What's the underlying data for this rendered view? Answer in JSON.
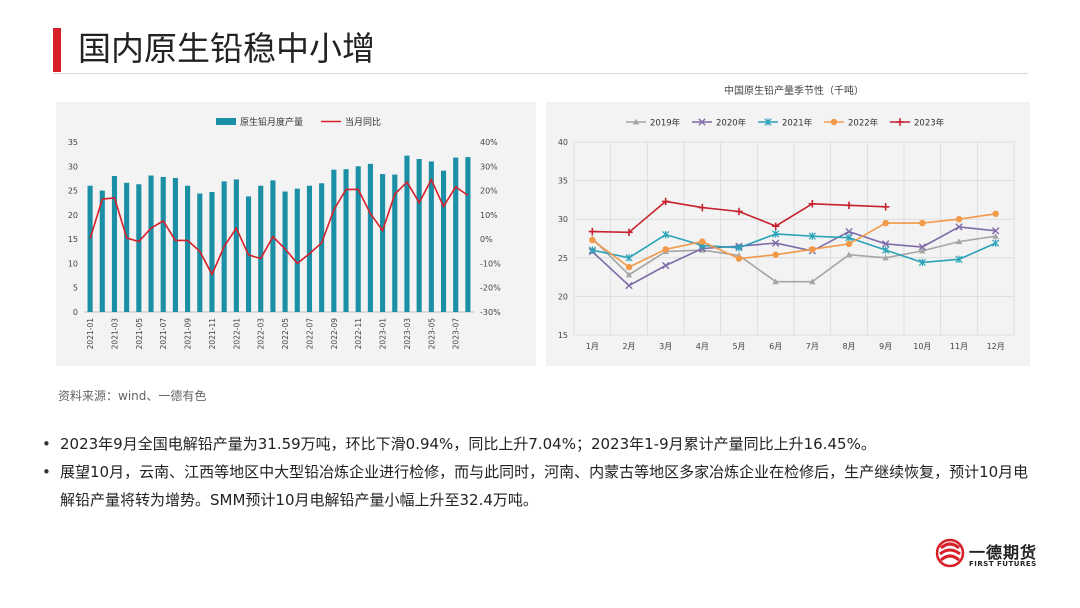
{
  "page": {
    "title": "国内原生铅稳中小增",
    "source": "资料来源：wind、一德有色",
    "bullets": [
      "2023年9月全国电解铅产量为31.59万吨，环比下滑0.94%，同比上升7.04%；2023年1-9月累计产量同比上升16.45%。",
      "展望10月，云南、江西等地区中大型铅冶炼企业进行检修，而与此同时，河南、内蒙古等地区多家冶炼企业在检修后，生产继续恢复，预计10月电解铅产量将转为增势。SMM预计10月电解铅产量小幅上升至32.4万吨。"
    ]
  },
  "logo": {
    "name": "一德期货",
    "sub": "FIRST FUTURES"
  },
  "colors": {
    "accent": "#d7202a",
    "bar": "#1b8fa6",
    "yoy": "#d7202a"
  },
  "chart_data": [
    {
      "type": "bar",
      "title": "",
      "categories": [
        "2021-01",
        "2021-02",
        "2021-03",
        "2021-04",
        "2021-05",
        "2021-06",
        "2021-07",
        "2021-08",
        "2021-09",
        "2021-10",
        "2021-11",
        "2021-12",
        "2022-01",
        "2022-02",
        "2022-03",
        "2022-04",
        "2022-05",
        "2022-06",
        "2022-07",
        "2022-08",
        "2022-09",
        "2022-10",
        "2022-11",
        "2022-12",
        "2023-01",
        "2023-02",
        "2023-03",
        "2023-04",
        "2023-05",
        "2023-06",
        "2023-07",
        "2023-08"
      ],
      "x_tick_labels": [
        "2021-01",
        "2021-03",
        "2021-05",
        "2021-07",
        "2021-09",
        "2021-11",
        "2022-01",
        "2022-03",
        "2022-05",
        "2022-07",
        "2022-09",
        "2022-11",
        "2023-01",
        "2023-03",
        "2023-05",
        "2023-07"
      ],
      "series": [
        {
          "name": "原生铅月度产量",
          "type": "bar",
          "axis": "left",
          "values": [
            26,
            25,
            28,
            26.6,
            26.3,
            28.1,
            27.8,
            27.6,
            26,
            24.4,
            24.7,
            26.9,
            27.3,
            23.8,
            26,
            27.1,
            24.8,
            25.4,
            26,
            26.5,
            29.3,
            29.4,
            30,
            30.5,
            28.4,
            28.3,
            32.2,
            31.5,
            31,
            29.1,
            31.8,
            31.9
          ]
        },
        {
          "name": "当月同比",
          "type": "line",
          "axis": "right",
          "values": [
            0.2,
            16.5,
            17,
            0.5,
            -1,
            4.5,
            7.5,
            -0.5,
            -0.5,
            -5,
            -14.5,
            -3,
            4.5,
            -6.5,
            -8,
            1,
            -4,
            -10,
            -6,
            -1.5,
            12,
            20.5,
            20.5,
            10.5,
            3.5,
            18.5,
            23.5,
            15,
            24.5,
            13.5,
            21.5,
            18
          ]
        }
      ],
      "y_left": {
        "min": 0,
        "max": 35,
        "ticks": [
          "0",
          "5",
          "10",
          "15",
          "20",
          "25",
          "30",
          "35"
        ]
      },
      "y_right": {
        "min": -30,
        "max": 40,
        "ticks": [
          "-30%",
          "-20%",
          "-10%",
          "0%",
          "10%",
          "20%",
          "30%",
          "40%"
        ]
      },
      "legend": "top"
    },
    {
      "type": "line",
      "title": "中国原生铅产量季节性（千吨）",
      "categories": [
        "1月",
        "2月",
        "3月",
        "4月",
        "5月",
        "6月",
        "7月",
        "8月",
        "9月",
        "10月",
        "11月",
        "12月"
      ],
      "y": {
        "min": 15,
        "max": 40,
        "ticks": [
          "15",
          "20",
          "25",
          "30",
          "35",
          "40"
        ]
      },
      "series": [
        {
          "name": "2019年",
          "color": "#a5a5a5",
          "marker": "triangle",
          "values": [
            27.5,
            22.8,
            25.8,
            26,
            25.3,
            21.9,
            21.9,
            25.4,
            25,
            25.9,
            27.1,
            27.8
          ]
        },
        {
          "name": "2020年",
          "color": "#7e6ba8",
          "marker": "x",
          "values": [
            25.8,
            21.4,
            24,
            26.2,
            26.5,
            26.9,
            25.9,
            28.4,
            26.8,
            26.4,
            29,
            28.5
          ]
        },
        {
          "name": "2021年",
          "color": "#2aa3b8",
          "marker": "star",
          "values": [
            26,
            25,
            28,
            26.6,
            26.3,
            28.1,
            27.8,
            27.6,
            26,
            24.4,
            24.8,
            26.9
          ]
        },
        {
          "name": "2022年",
          "color": "#f2994a",
          "marker": "circle",
          "values": [
            27.3,
            23.8,
            26.1,
            27.1,
            24.9,
            25.4,
            26.1,
            26.8,
            29.5,
            29.5,
            30,
            30.7
          ]
        },
        {
          "name": "2023年",
          "color": "#c6232e",
          "marker": "plus",
          "values": [
            28.4,
            28.3,
            32.3,
            31.5,
            31,
            29.1,
            32,
            31.8,
            31.6,
            null,
            null,
            null
          ]
        }
      ],
      "legend": "top"
    }
  ]
}
